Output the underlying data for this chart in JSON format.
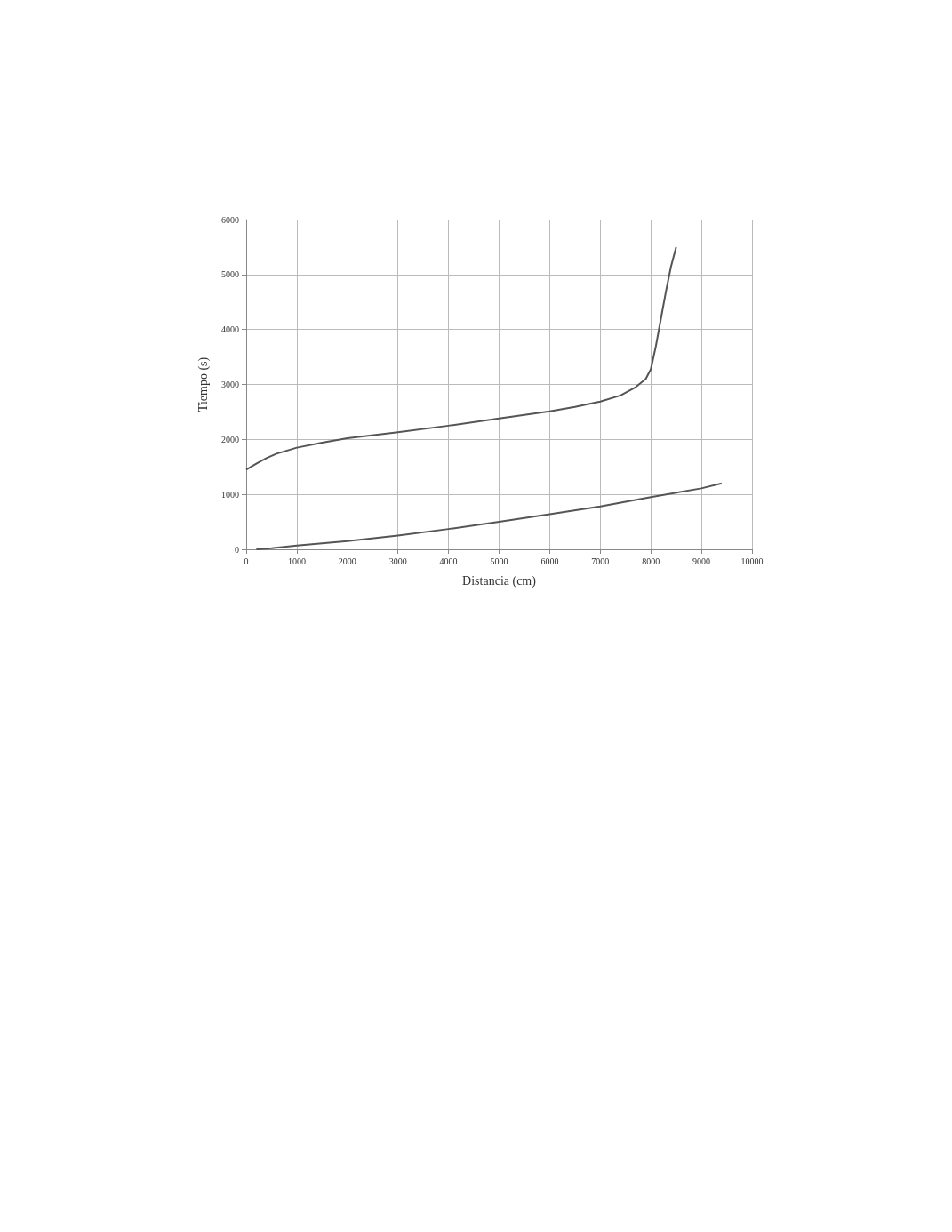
{
  "chart_data": {
    "type": "line",
    "xlabel": "Distancia (cm)",
    "ylabel": "Tiempo (s)",
    "series": [
      {
        "color": "#555555",
        "x": [
          0,
          200,
          400,
          600,
          1000,
          1500,
          2000,
          3000,
          4000,
          5000,
          6000,
          6500,
          7000,
          7400,
          7700,
          7900,
          8000,
          8100,
          8200,
          8300,
          8400,
          8500
        ],
        "values": [
          1450,
          1560,
          1660,
          1740,
          1850,
          1940,
          2020,
          2130,
          2250,
          2380,
          2510,
          2590,
          2690,
          2800,
          2950,
          3100,
          3280,
          3700,
          4200,
          4700,
          5150,
          5500
        ]
      },
      {
        "color": "#555555",
        "x": [
          200,
          500,
          1000,
          2000,
          3000,
          4000,
          5000,
          6000,
          7000,
          8000,
          9000,
          9400
        ],
        "values": [
          0,
          20,
          70,
          150,
          250,
          370,
          500,
          640,
          780,
          950,
          1110,
          1200
        ]
      }
    ],
    "xlim": [
      0,
      10000
    ],
    "xticks": [
      0,
      1000,
      2000,
      3000,
      4000,
      5000,
      6000,
      7000,
      8000,
      9000,
      10000
    ],
    "ylim": [
      0,
      6000
    ],
    "yticks": [
      0,
      1000,
      2000,
      3000,
      4000,
      5000,
      6000
    ],
    "grid": true,
    "marker": "none",
    "line_style": "solid"
  }
}
